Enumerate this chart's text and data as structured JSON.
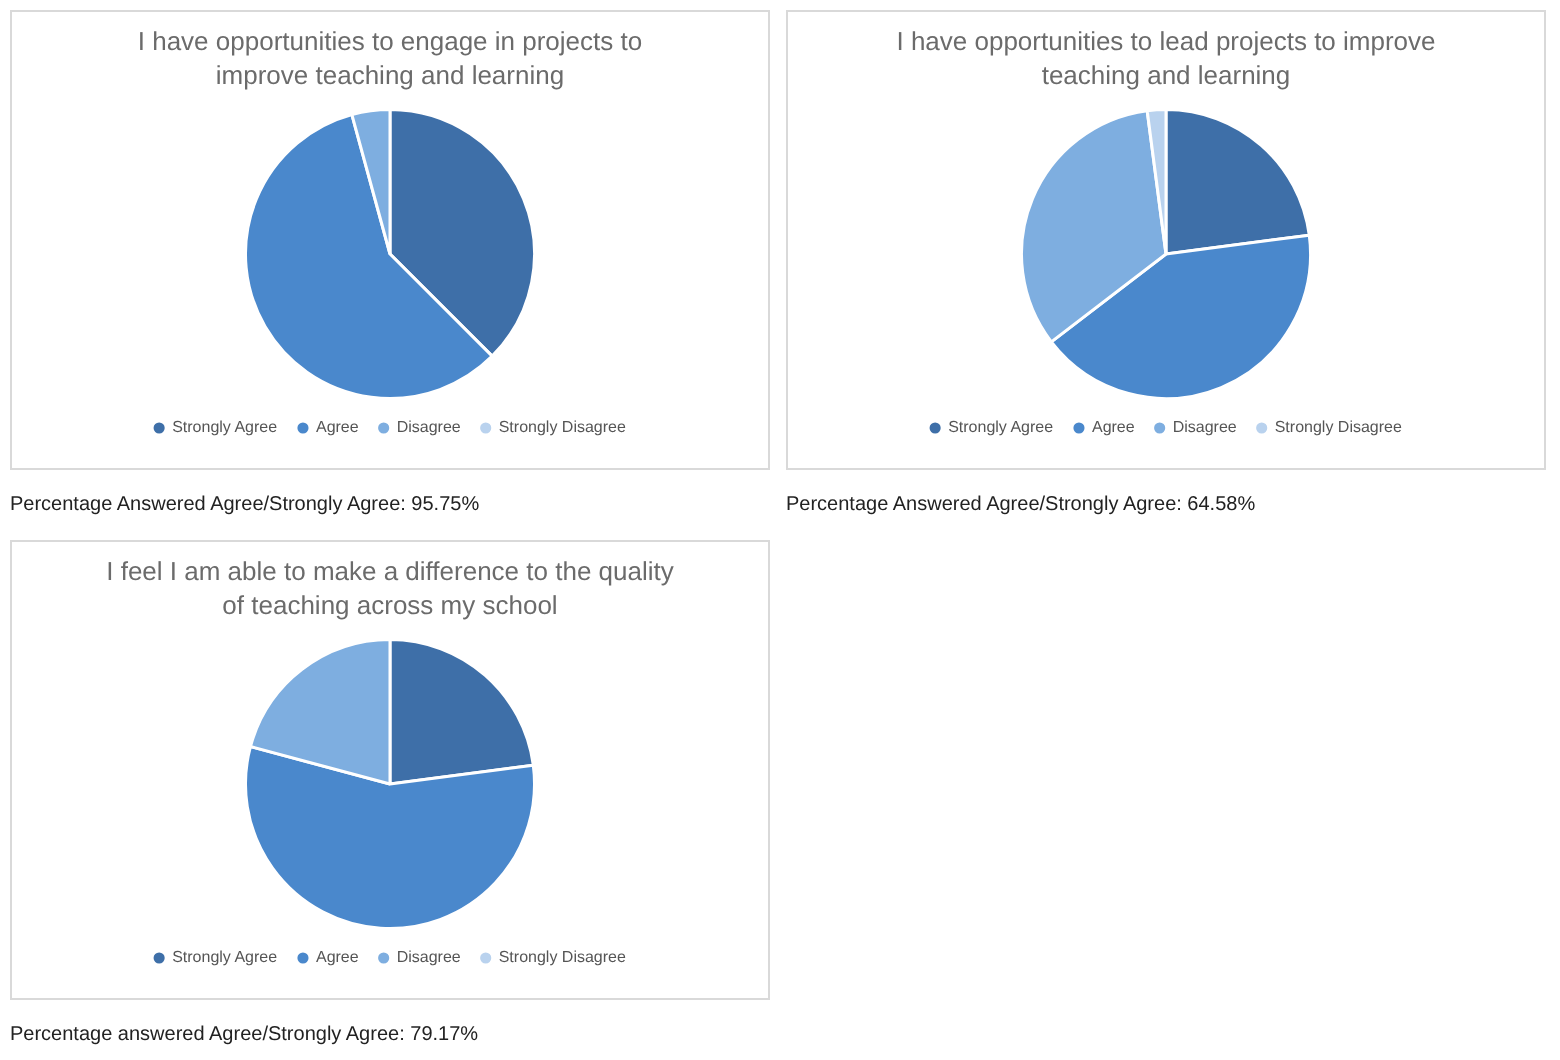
{
  "chart_data": [
    {
      "type": "pie",
      "title": "I have opportunities to engage in projects to improve teaching and learning",
      "categories": [
        "Strongly Agree",
        "Agree",
        "Disagree",
        "Strongly Disagree"
      ],
      "values": [
        37.5,
        58.25,
        4.25,
        0
      ],
      "colors": [
        "#3e6fa8",
        "#4a88cc",
        "#7eaee0",
        "#b9d2ee"
      ],
      "legend": "bottom",
      "annotations": [
        "Percentage Answered Agree/Strongly Agree: 95.75%"
      ]
    },
    {
      "type": "pie",
      "title": "I have opportunities to lead projects to improve teaching and learning",
      "categories": [
        "Strongly Agree",
        "Agree",
        "Disagree",
        "Strongly Disagree"
      ],
      "values": [
        22.92,
        41.67,
        33.33,
        2.08
      ],
      "colors": [
        "#3e6fa8",
        "#4a88cc",
        "#7eaee0",
        "#b9d2ee"
      ],
      "legend": "bottom",
      "annotations": [
        "Percentage Answered Agree/Strongly Agree: 64.58%"
      ]
    },
    {
      "type": "pie",
      "title": "I feel I am able to make a difference to the quality of teaching across my school",
      "categories": [
        "Strongly Agree",
        "Agree",
        "Disagree",
        "Strongly Disagree"
      ],
      "values": [
        22.92,
        56.25,
        20.83,
        0
      ],
      "colors": [
        "#3e6fa8",
        "#4a88cc",
        "#7eaee0",
        "#b9d2ee"
      ],
      "legend": "bottom",
      "annotations": [
        "Percentage answered Agree/Strongly Agree: 79.17%"
      ]
    }
  ]
}
